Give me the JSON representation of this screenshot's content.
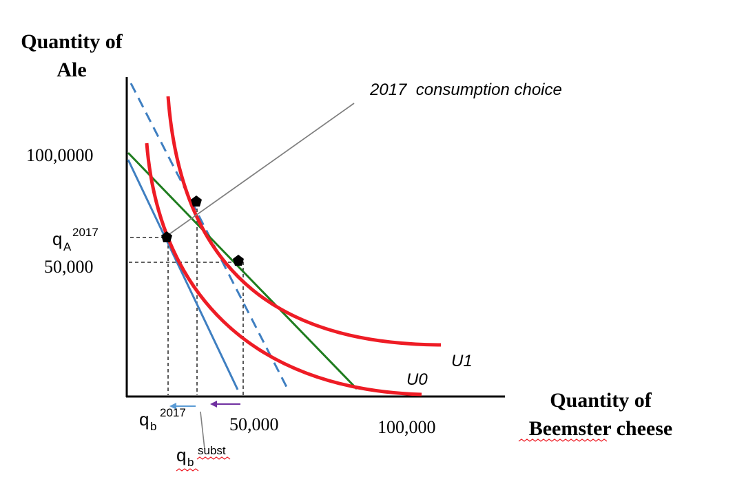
{
  "y_axis_title": {
    "line1": "Quantity of",
    "line2": "Ale"
  },
  "x_axis_title": {
    "line1": "Quantity of",
    "line2": "Beemster cheese"
  },
  "y_ticks": {
    "top": "100,0000",
    "mid": "50,000"
  },
  "x_ticks": {
    "mid": "50,000",
    "right": "100,000"
  },
  "q_a": {
    "base": "q",
    "sub": "A",
    "sup": "2017"
  },
  "q_b": {
    "base": "q",
    "sub": "b",
    "sup": "2017"
  },
  "q_b_subst": {
    "base": "q",
    "sub": "b",
    "sup": "subst"
  },
  "annotation": "2017  consumption choice",
  "curves": {
    "u0": "U0",
    "u1": "U1"
  },
  "colors": {
    "indifference": "#ee1c25",
    "budget": "#3f7fc1",
    "budget_dashed": "#3f7fc1",
    "compensated": "#1f7d1f",
    "arrow_blue": "#5b9bd5",
    "arrow_purple": "#7030a0",
    "squiggle": "#ee1c25"
  }
}
